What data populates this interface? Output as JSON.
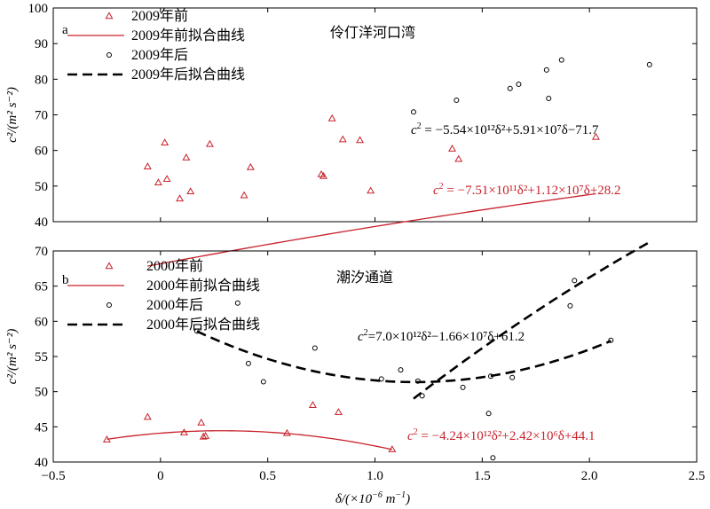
{
  "colors": {
    "red": "#c8202a",
    "black": "#000000"
  },
  "shared_xlabel_prefix": "δ/(×10",
  "shared_xlabel_exp": "−6",
  "shared_xlabel_unit": " m",
  "shared_xlabel_unit_exp": "−1",
  "shared_xlabel_close": ")",
  "chart_data": [
    {
      "type": "scatter",
      "panel_letter": "a",
      "title": "伶仃洋河口湾",
      "ylabel": "c²/(m² s⁻²)",
      "xlim": [
        -0.5,
        2.5
      ],
      "ylim": [
        40,
        100
      ],
      "xticks": [
        -0.5,
        0,
        0.5,
        1.0,
        1.5,
        2.0,
        2.5
      ],
      "xtick_labels": [
        "−0.5",
        "0",
        "0.5",
        "1.0",
        "1.5",
        "2.0",
        "2.5"
      ],
      "yticks": [
        40,
        50,
        60,
        70,
        80,
        90,
        100
      ],
      "show_xtick_labels": false,
      "legend": {
        "placement": "top-left",
        "entries": [
          "2009年前",
          "2009年前拟合曲线",
          "2009年后",
          "2009年后拟合曲线"
        ]
      },
      "series": [
        {
          "name": "2009年前",
          "kind": "points",
          "marker": "triangle",
          "color": "red",
          "points": [
            [
              -0.06,
              55.5
            ],
            [
              -0.01,
              51.0
            ],
            [
              0.02,
              62.2
            ],
            [
              0.03,
              52.0
            ],
            [
              0.09,
              46.5
            ],
            [
              0.12,
              58.0
            ],
            [
              0.14,
              48.5
            ],
            [
              0.23,
              61.8
            ],
            [
              0.39,
              47.4
            ],
            [
              0.42,
              55.3
            ],
            [
              0.75,
              53.3
            ],
            [
              0.76,
              52.8
            ],
            [
              0.8,
              69.0
            ],
            [
              0.85,
              63.1
            ],
            [
              0.93,
              62.9
            ],
            [
              0.98,
              48.7
            ],
            [
              1.36,
              60.5
            ],
            [
              1.39,
              57.6
            ],
            [
              2.03,
              63.8
            ]
          ]
        },
        {
          "name": "2009年前拟合曲线",
          "kind": "curve",
          "style": "solid",
          "color": "red",
          "coef": {
            "a": -751000000000.0,
            "b": 11200000.0,
            "c": 28.2
          },
          "domain": [
            -0.06,
            2.03
          ],
          "equation_lhs": "c",
          "equation_rhs": " = −7.51×10¹¹δ²+1.12×10⁷δ+28.2"
        },
        {
          "name": "2009年后",
          "kind": "points",
          "marker": "circle",
          "color": "black",
          "points": [
            [
              1.18,
              70.8
            ],
            [
              1.38,
              74.1
            ],
            [
              1.63,
              77.4
            ],
            [
              1.67,
              78.6
            ],
            [
              1.8,
              82.6
            ],
            [
              1.81,
              74.6
            ],
            [
              1.87,
              85.4
            ],
            [
              2.28,
              84.1
            ]
          ]
        },
        {
          "name": "2009年后拟合曲线",
          "kind": "curve",
          "style": "dashed",
          "color": "black",
          "coef": {
            "a": -5540000000000.0,
            "b": 59100000.0,
            "c": -71.7
          },
          "domain": [
            1.18,
            2.28
          ],
          "equation_lhs": "c",
          "equation_rhs": " = −5.54×10¹²δ²+5.91×10⁷δ−71.7"
        }
      ]
    },
    {
      "type": "scatter",
      "panel_letter": "b",
      "title": "潮汐通道",
      "ylabel": "c²/(m² s⁻²)",
      "xlim": [
        -0.5,
        2.5
      ],
      "ylim": [
        40,
        70
      ],
      "xticks": [
        -0.5,
        0,
        0.5,
        1.0,
        1.5,
        2.0,
        2.5
      ],
      "xtick_labels": [
        "−0.5",
        "0",
        "0.5",
        "1.0",
        "1.5",
        "2.0",
        "2.5"
      ],
      "yticks": [
        40,
        45,
        50,
        55,
        60,
        65,
        70
      ],
      "show_xtick_labels": true,
      "legend": {
        "placement": "top-left",
        "entries": [
          "2000年前",
          "2000年前拟合曲线",
          "2000年后",
          "2000年后拟合曲线"
        ]
      },
      "series": [
        {
          "name": "2000年前",
          "kind": "points",
          "marker": "triangle",
          "color": "red",
          "points": [
            [
              -0.25,
              43.2
            ],
            [
              -0.06,
              46.4
            ],
            [
              0.11,
              44.2
            ],
            [
              0.19,
              45.6
            ],
            [
              0.2,
              43.6
            ],
            [
              0.21,
              43.7
            ],
            [
              0.59,
              44.1
            ],
            [
              0.71,
              48.1
            ],
            [
              0.83,
              47.1
            ],
            [
              1.08,
              41.8
            ]
          ]
        },
        {
          "name": "2000年前拟合曲线",
          "kind": "curve",
          "style": "solid",
          "color": "red",
          "coef": {
            "a": -4240000000000.0,
            "b": 2420000.0,
            "c": 44.1
          },
          "domain": [
            -0.25,
            1.08
          ],
          "equation_lhs": "c",
          "equation_rhs": " = −4.24×10¹²δ²+2.42×10⁶δ+44.1"
        },
        {
          "name": "2000年后",
          "kind": "points",
          "marker": "circle",
          "color": "black",
          "points": [
            [
              0.17,
              58.6
            ],
            [
              0.36,
              62.6
            ],
            [
              0.41,
              54.0
            ],
            [
              0.48,
              51.4
            ],
            [
              0.72,
              56.2
            ],
            [
              1.03,
              51.8
            ],
            [
              1.12,
              53.1
            ],
            [
              1.2,
              51.5
            ],
            [
              1.22,
              49.4
            ],
            [
              1.41,
              50.6
            ],
            [
              1.53,
              46.9
            ],
            [
              1.54,
              52.2
            ],
            [
              1.55,
              40.6
            ],
            [
              1.64,
              52.0
            ],
            [
              1.91,
              62.2
            ],
            [
              1.93,
              65.8
            ],
            [
              2.1,
              57.3
            ]
          ]
        },
        {
          "name": "2000年后拟合曲线",
          "kind": "curve",
          "style": "dashed",
          "color": "black",
          "coef": {
            "a": 7000000000000.0,
            "b": -16600000.0,
            "c": 61.2
          },
          "domain": [
            0.17,
            2.1
          ],
          "equation_lhs": "c",
          "equation_rhs": "=7.0×10¹²δ²−1.66×10⁷δ+61.2"
        }
      ]
    }
  ]
}
